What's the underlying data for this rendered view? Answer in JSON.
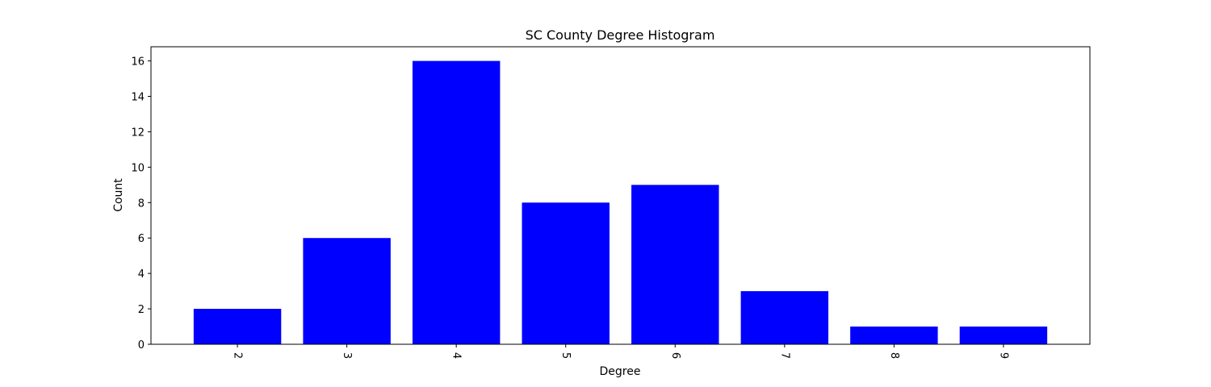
{
  "chart_data": {
    "type": "bar",
    "title": "SC County Degree Histogram",
    "xlabel": "Degree",
    "ylabel": "Count",
    "categories": [
      "2",
      "3",
      "4",
      "5",
      "6",
      "7",
      "8",
      "9"
    ],
    "values": [
      2,
      6,
      16,
      8,
      9,
      3,
      1,
      1
    ],
    "ylim": [
      0,
      16.8
    ],
    "yticks": [
      0,
      2,
      4,
      6,
      8,
      10,
      12,
      14,
      16
    ],
    "bar_color": "#0000ff",
    "grid": false
  }
}
